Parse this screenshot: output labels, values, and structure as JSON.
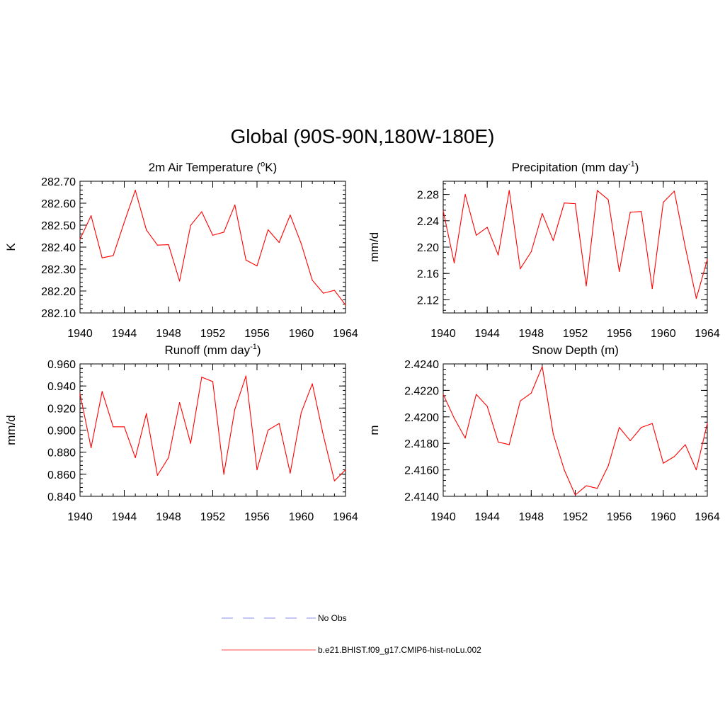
{
  "figure": {
    "title": "Global (90S-90N,180W-180E)"
  },
  "legend": {
    "entries": [
      {
        "label": "No Obs",
        "color": "#a3a3f5",
        "dash": "dashed"
      },
      {
        "label": "b.e21.BHIST.f09_g17.CMIP6-hist-noLu.002",
        "color": "#ff7070",
        "dash": "solid"
      }
    ]
  },
  "chart_data": [
    {
      "type": "line",
      "title_main": "2m Air Temperature (",
      "title_sup": "o",
      "title_tail": "K)",
      "ylabel": "K",
      "xlim": [
        1940,
        1964
      ],
      "ylim": [
        282.1,
        282.7
      ],
      "xticks": [
        1940,
        1944,
        1948,
        1952,
        1956,
        1960,
        1964
      ],
      "yticks": [
        "282.10",
        "282.20",
        "282.30",
        "282.40",
        "282.50",
        "282.60",
        "282.70"
      ],
      "series": [
        {
          "name": "b.e21.BHIST.f09_g17.CMIP6-hist-noLu.002",
          "color": "#ff0000",
          "x": [
            1940,
            1941,
            1942,
            1943,
            1944,
            1945,
            1946,
            1947,
            1948,
            1949,
            1950,
            1951,
            1952,
            1953,
            1954,
            1955,
            1956,
            1957,
            1958,
            1959,
            1960,
            1961,
            1962,
            1963,
            1964
          ],
          "values": [
            282.436,
            282.543,
            282.351,
            282.361,
            282.513,
            282.659,
            282.478,
            282.409,
            282.411,
            282.245,
            282.499,
            282.561,
            282.454,
            282.468,
            282.592,
            282.341,
            282.314,
            282.479,
            282.421,
            282.546,
            282.415,
            282.249,
            282.19,
            282.203,
            282.136
          ]
        }
      ]
    },
    {
      "type": "line",
      "title_main": "Precipitation (mm day",
      "title_sup": "-1",
      "title_tail": ")",
      "ylabel": "mm/d",
      "xlim": [
        1940,
        1964
      ],
      "ylim": [
        2.1,
        2.3
      ],
      "xticks": [
        1940,
        1944,
        1948,
        1952,
        1956,
        1960,
        1964
      ],
      "yticks": [
        "2.12",
        "2.16",
        "2.20",
        "2.24",
        "2.28"
      ],
      "series": [
        {
          "name": "b.e21.BHIST.f09_g17.CMIP6-hist-noLu.002",
          "color": "#ff0000",
          "x": [
            1940,
            1941,
            1942,
            1943,
            1944,
            1945,
            1946,
            1947,
            1948,
            1949,
            1950,
            1951,
            1952,
            1953,
            1954,
            1955,
            1956,
            1957,
            1958,
            1959,
            1960,
            1961,
            1962,
            1963,
            1964
          ],
          "values": [
            2.255,
            2.176,
            2.28,
            2.218,
            2.23,
            2.188,
            2.286,
            2.167,
            2.193,
            2.251,
            2.21,
            2.267,
            2.266,
            2.141,
            2.286,
            2.272,
            2.163,
            2.253,
            2.254,
            2.137,
            2.268,
            2.285,
            2.2,
            2.122,
            2.181
          ]
        }
      ]
    },
    {
      "type": "line",
      "title_main": "Runoff (mm day",
      "title_sup": "-1",
      "title_tail": ")",
      "ylabel": "mm/d",
      "xlim": [
        1940,
        1964
      ],
      "ylim": [
        0.84,
        0.96
      ],
      "xticks": [
        1940,
        1944,
        1948,
        1952,
        1956,
        1960,
        1964
      ],
      "yticks": [
        "0.840",
        "0.860",
        "0.880",
        "0.900",
        "0.920",
        "0.940",
        "0.960"
      ],
      "series": [
        {
          "name": "b.e21.BHIST.f09_g17.CMIP6-hist-noLu.002",
          "color": "#ff0000",
          "x": [
            1940,
            1941,
            1942,
            1943,
            1944,
            1945,
            1946,
            1947,
            1948,
            1949,
            1950,
            1951,
            1952,
            1953,
            1954,
            1955,
            1956,
            1957,
            1958,
            1959,
            1960,
            1961,
            1962,
            1963,
            1964
          ],
          "values": [
            0.933,
            0.884,
            0.935,
            0.903,
            0.903,
            0.875,
            0.915,
            0.859,
            0.875,
            0.925,
            0.888,
            0.948,
            0.944,
            0.86,
            0.919,
            0.949,
            0.864,
            0.9,
            0.906,
            0.861,
            0.916,
            0.942,
            0.895,
            0.854,
            0.864
          ]
        }
      ]
    },
    {
      "type": "line",
      "title_main": "Snow Depth (m)",
      "title_sup": "",
      "title_tail": "",
      "ylabel": "m",
      "xlim": [
        1940,
        1964
      ],
      "ylim": [
        2.414,
        2.424
      ],
      "xticks": [
        1940,
        1944,
        1948,
        1952,
        1956,
        1960,
        1964
      ],
      "yticks": [
        "2.4140",
        "2.4160",
        "2.4180",
        "2.4200",
        "2.4220",
        "2.4240"
      ],
      "series": [
        {
          "name": "b.e21.BHIST.f09_g17.CMIP6-hist-noLu.002",
          "color": "#ff0000",
          "x": [
            1940,
            1941,
            1942,
            1943,
            1944,
            1945,
            1946,
            1947,
            1948,
            1949,
            1950,
            1951,
            1952,
            1953,
            1954,
            1955,
            1956,
            1957,
            1958,
            1959,
            1960,
            1961,
            1962,
            1963,
            1964
          ],
          "values": [
            2.4217,
            2.4199,
            2.4184,
            2.4217,
            2.4208,
            2.4181,
            2.4179,
            2.4212,
            2.4218,
            2.4238,
            2.4187,
            2.416,
            2.4141,
            2.4148,
            2.4146,
            2.4163,
            2.4192,
            2.4182,
            2.4192,
            2.4195,
            2.4165,
            2.417,
            2.4179,
            2.416,
            2.4195
          ]
        }
      ]
    }
  ]
}
